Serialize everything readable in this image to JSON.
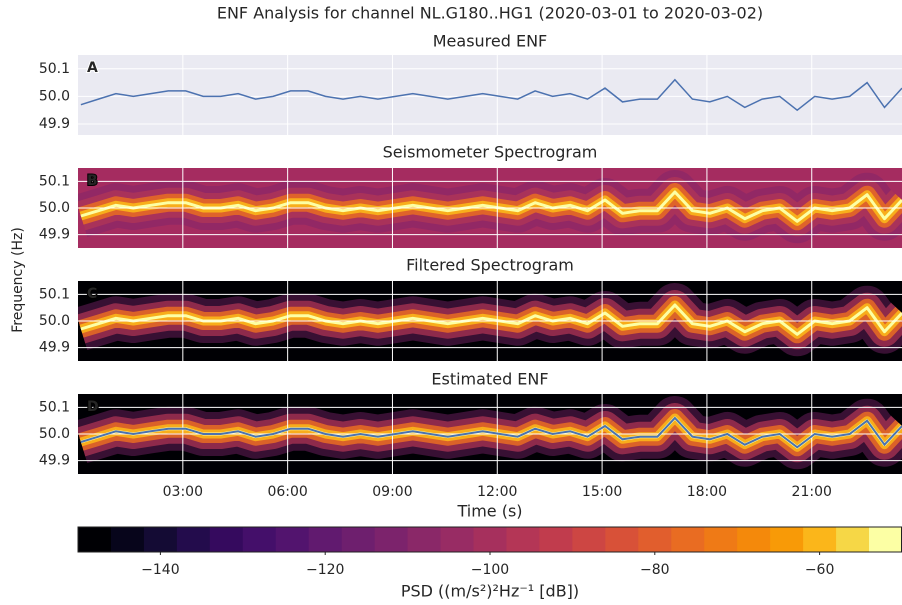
{
  "figure": {
    "title": "ENF Analysis for channel NL.G180..HG1 (2020-03-01 to 2020-03-02)",
    "ylabel": "Frequency (Hz)"
  },
  "chart_data": [
    {
      "type": "line",
      "title": "Measured ENF",
      "label": "A",
      "background": "#eaeaf2",
      "color": "#4c72b0",
      "grid": true,
      "x": [
        "00:05",
        "00:35",
        "01:05",
        "01:35",
        "02:05",
        "02:35",
        "03:05",
        "03:35",
        "04:05",
        "04:35",
        "05:05",
        "05:35",
        "06:05",
        "06:35",
        "07:05",
        "07:35",
        "08:05",
        "08:35",
        "09:05",
        "09:35",
        "10:05",
        "10:35",
        "11:05",
        "11:35",
        "12:05",
        "12:35",
        "13:05",
        "13:35",
        "14:05",
        "14:35",
        "15:05",
        "15:35",
        "16:05",
        "16:35",
        "17:05",
        "17:35",
        "18:05",
        "18:35",
        "19:05",
        "19:35",
        "20:05",
        "20:35",
        "21:05",
        "21:35",
        "22:05",
        "22:35",
        "23:05",
        "23:35"
      ],
      "values": [
        49.97,
        49.99,
        50.01,
        50.0,
        50.01,
        50.02,
        50.02,
        50.0,
        50.0,
        50.01,
        49.99,
        50.0,
        50.02,
        50.02,
        50.0,
        49.99,
        50.0,
        49.99,
        50.0,
        50.01,
        50.0,
        49.99,
        50.0,
        50.01,
        50.0,
        49.99,
        50.02,
        50.0,
        50.01,
        49.99,
        50.03,
        49.98,
        49.99,
        49.99,
        50.06,
        49.99,
        49.98,
        50.0,
        49.96,
        49.99,
        50.0,
        49.95,
        50.0,
        49.99,
        50.0,
        50.05,
        49.96,
        50.03
      ],
      "xlim": [
        "00:00",
        "23:35"
      ],
      "xticks": [
        "03:00",
        "06:00",
        "09:00",
        "12:00",
        "15:00",
        "18:00",
        "21:00"
      ],
      "ylim": [
        49.86,
        50.15
      ],
      "yticks": [
        49.9,
        {
          "value": 50.0,
          "label": "50.0"
        },
        50.1
      ]
    },
    {
      "type": "spectrogram",
      "title": "Seismometer Spectrogram",
      "label": "B",
      "background": "#a52c60",
      "grid": true,
      "x": [
        "00:05",
        "00:35",
        "01:05",
        "01:35",
        "02:05",
        "02:35",
        "03:05",
        "03:35",
        "04:05",
        "04:35",
        "05:05",
        "05:35",
        "06:05",
        "06:35",
        "07:05",
        "07:35",
        "08:05",
        "08:35",
        "09:05",
        "09:35",
        "10:05",
        "10:35",
        "11:05",
        "11:35",
        "12:05",
        "12:35",
        "13:05",
        "13:35",
        "14:05",
        "14:35",
        "15:05",
        "15:35",
        "16:05",
        "16:35",
        "17:05",
        "17:35",
        "18:05",
        "18:35",
        "19:05",
        "19:35",
        "20:05",
        "20:35",
        "21:05",
        "21:35",
        "22:05",
        "22:35",
        "23:05",
        "23:35"
      ],
      "values": [
        49.97,
        49.99,
        50.01,
        50.0,
        50.01,
        50.02,
        50.02,
        50.0,
        50.0,
        50.01,
        49.99,
        50.0,
        50.02,
        50.02,
        50.0,
        49.99,
        50.0,
        49.99,
        50.0,
        50.01,
        50.0,
        49.99,
        50.0,
        50.01,
        50.0,
        49.99,
        50.02,
        50.0,
        50.01,
        49.99,
        50.03,
        49.98,
        49.99,
        49.99,
        50.06,
        49.99,
        49.98,
        50.0,
        49.96,
        49.99,
        50.0,
        49.95,
        50.0,
        49.99,
        50.0,
        50.05,
        49.96,
        50.03
      ],
      "xlim": [
        "00:00",
        "23:35"
      ],
      "xticks": [
        "03:00",
        "06:00",
        "09:00",
        "12:00",
        "15:00",
        "18:00",
        "21:00"
      ],
      "ylim": [
        49.85,
        50.15
      ],
      "yticks": [
        49.9,
        {
          "value": 50.0,
          "label": "50.0"
        },
        50.1
      ]
    },
    {
      "type": "spectrogram",
      "title": "Filtered Spectrogram",
      "label": "C",
      "background": "#000004",
      "grid": true,
      "x": [
        "00:05",
        "00:35",
        "01:05",
        "01:35",
        "02:05",
        "02:35",
        "03:05",
        "03:35",
        "04:05",
        "04:35",
        "05:05",
        "05:35",
        "06:05",
        "06:35",
        "07:05",
        "07:35",
        "08:05",
        "08:35",
        "09:05",
        "09:35",
        "10:05",
        "10:35",
        "11:05",
        "11:35",
        "12:05",
        "12:35",
        "13:05",
        "13:35",
        "14:05",
        "14:35",
        "15:05",
        "15:35",
        "16:05",
        "16:35",
        "17:05",
        "17:35",
        "18:05",
        "18:35",
        "19:05",
        "19:35",
        "20:05",
        "20:35",
        "21:05",
        "21:35",
        "22:05",
        "22:35",
        "23:05",
        "23:35"
      ],
      "values": [
        49.97,
        49.99,
        50.01,
        50.0,
        50.01,
        50.02,
        50.02,
        50.0,
        50.0,
        50.01,
        49.99,
        50.0,
        50.02,
        50.02,
        50.0,
        49.99,
        50.0,
        49.99,
        50.0,
        50.01,
        50.0,
        49.99,
        50.0,
        50.01,
        50.0,
        49.99,
        50.02,
        50.0,
        50.01,
        49.99,
        50.03,
        49.98,
        49.99,
        49.99,
        50.06,
        49.99,
        49.98,
        50.0,
        49.96,
        49.99,
        50.0,
        49.95,
        50.0,
        49.99,
        50.0,
        50.05,
        49.96,
        50.03
      ],
      "xlim": [
        "00:00",
        "23:35"
      ],
      "xticks": [
        "03:00",
        "06:00",
        "09:00",
        "12:00",
        "15:00",
        "18:00",
        "21:00"
      ],
      "ylim": [
        49.85,
        50.15
      ],
      "yticks": [
        49.9,
        {
          "value": 50.0,
          "label": "50.0"
        },
        50.1
      ]
    },
    {
      "type": "spectrogram",
      "title": "Estimated ENF",
      "label": "D",
      "background": "#000004",
      "color": "#4c72b0",
      "grid": true,
      "xlabel": "Time (s)",
      "x": [
        "00:05",
        "00:35",
        "01:05",
        "01:35",
        "02:05",
        "02:35",
        "03:05",
        "03:35",
        "04:05",
        "04:35",
        "05:05",
        "05:35",
        "06:05",
        "06:35",
        "07:05",
        "07:35",
        "08:05",
        "08:35",
        "09:05",
        "09:35",
        "10:05",
        "10:35",
        "11:05",
        "11:35",
        "12:05",
        "12:35",
        "13:05",
        "13:35",
        "14:05",
        "14:35",
        "15:05",
        "15:35",
        "16:05",
        "16:35",
        "17:05",
        "17:35",
        "18:05",
        "18:35",
        "19:05",
        "19:35",
        "20:05",
        "20:35",
        "21:05",
        "21:35",
        "22:05",
        "22:35",
        "23:05",
        "23:35"
      ],
      "values": [
        49.97,
        49.99,
        50.01,
        50.0,
        50.01,
        50.02,
        50.02,
        50.0,
        50.0,
        50.01,
        49.99,
        50.0,
        50.02,
        50.02,
        50.0,
        49.99,
        50.0,
        49.99,
        50.0,
        50.01,
        50.0,
        49.99,
        50.0,
        50.01,
        50.0,
        49.99,
        50.02,
        50.0,
        50.01,
        49.99,
        50.03,
        49.98,
        49.99,
        49.99,
        50.06,
        49.99,
        49.98,
        50.0,
        49.96,
        49.99,
        50.0,
        49.95,
        50.0,
        49.99,
        50.0,
        50.05,
        49.96,
        50.03
      ],
      "xlim": [
        "00:00",
        "23:35"
      ],
      "xticks": [
        "03:00",
        "06:00",
        "09:00",
        "12:00",
        "15:00",
        "18:00",
        "21:00"
      ],
      "ylim": [
        49.85,
        50.15
      ],
      "yticks": [
        49.9,
        {
          "value": 50.0,
          "label": "50.0"
        },
        50.1
      ]
    },
    {
      "type": "colorbar",
      "xlabel": "PSD ((m/s²)²Hz⁻¹ [dB])",
      "xlim": [
        -150,
        -50
      ],
      "xticks": [
        {
          "value": -140,
          "label": "−140"
        },
        {
          "value": -120,
          "label": "−120"
        },
        {
          "value": -100,
          "label": "−100"
        },
        {
          "value": -80,
          "label": "−80"
        },
        {
          "value": -60,
          "label": "−60"
        }
      ],
      "colors": [
        "#000004",
        "#07051b",
        "#140b34",
        "#230c4c",
        "#350a5e",
        "#440f6a",
        "#52146e",
        "#611a6f",
        "#6e1f6e",
        "#7c236c",
        "#8a2868",
        "#982c64",
        "#a6305d",
        "#b43656",
        "#c13c4d",
        "#cd4643",
        "#d85138",
        "#e15e2d",
        "#e96c22",
        "#ef7a16",
        "#f4890b",
        "#f89a07",
        "#fbb61a",
        "#f6d746",
        "#fcffa4"
      ]
    }
  ]
}
